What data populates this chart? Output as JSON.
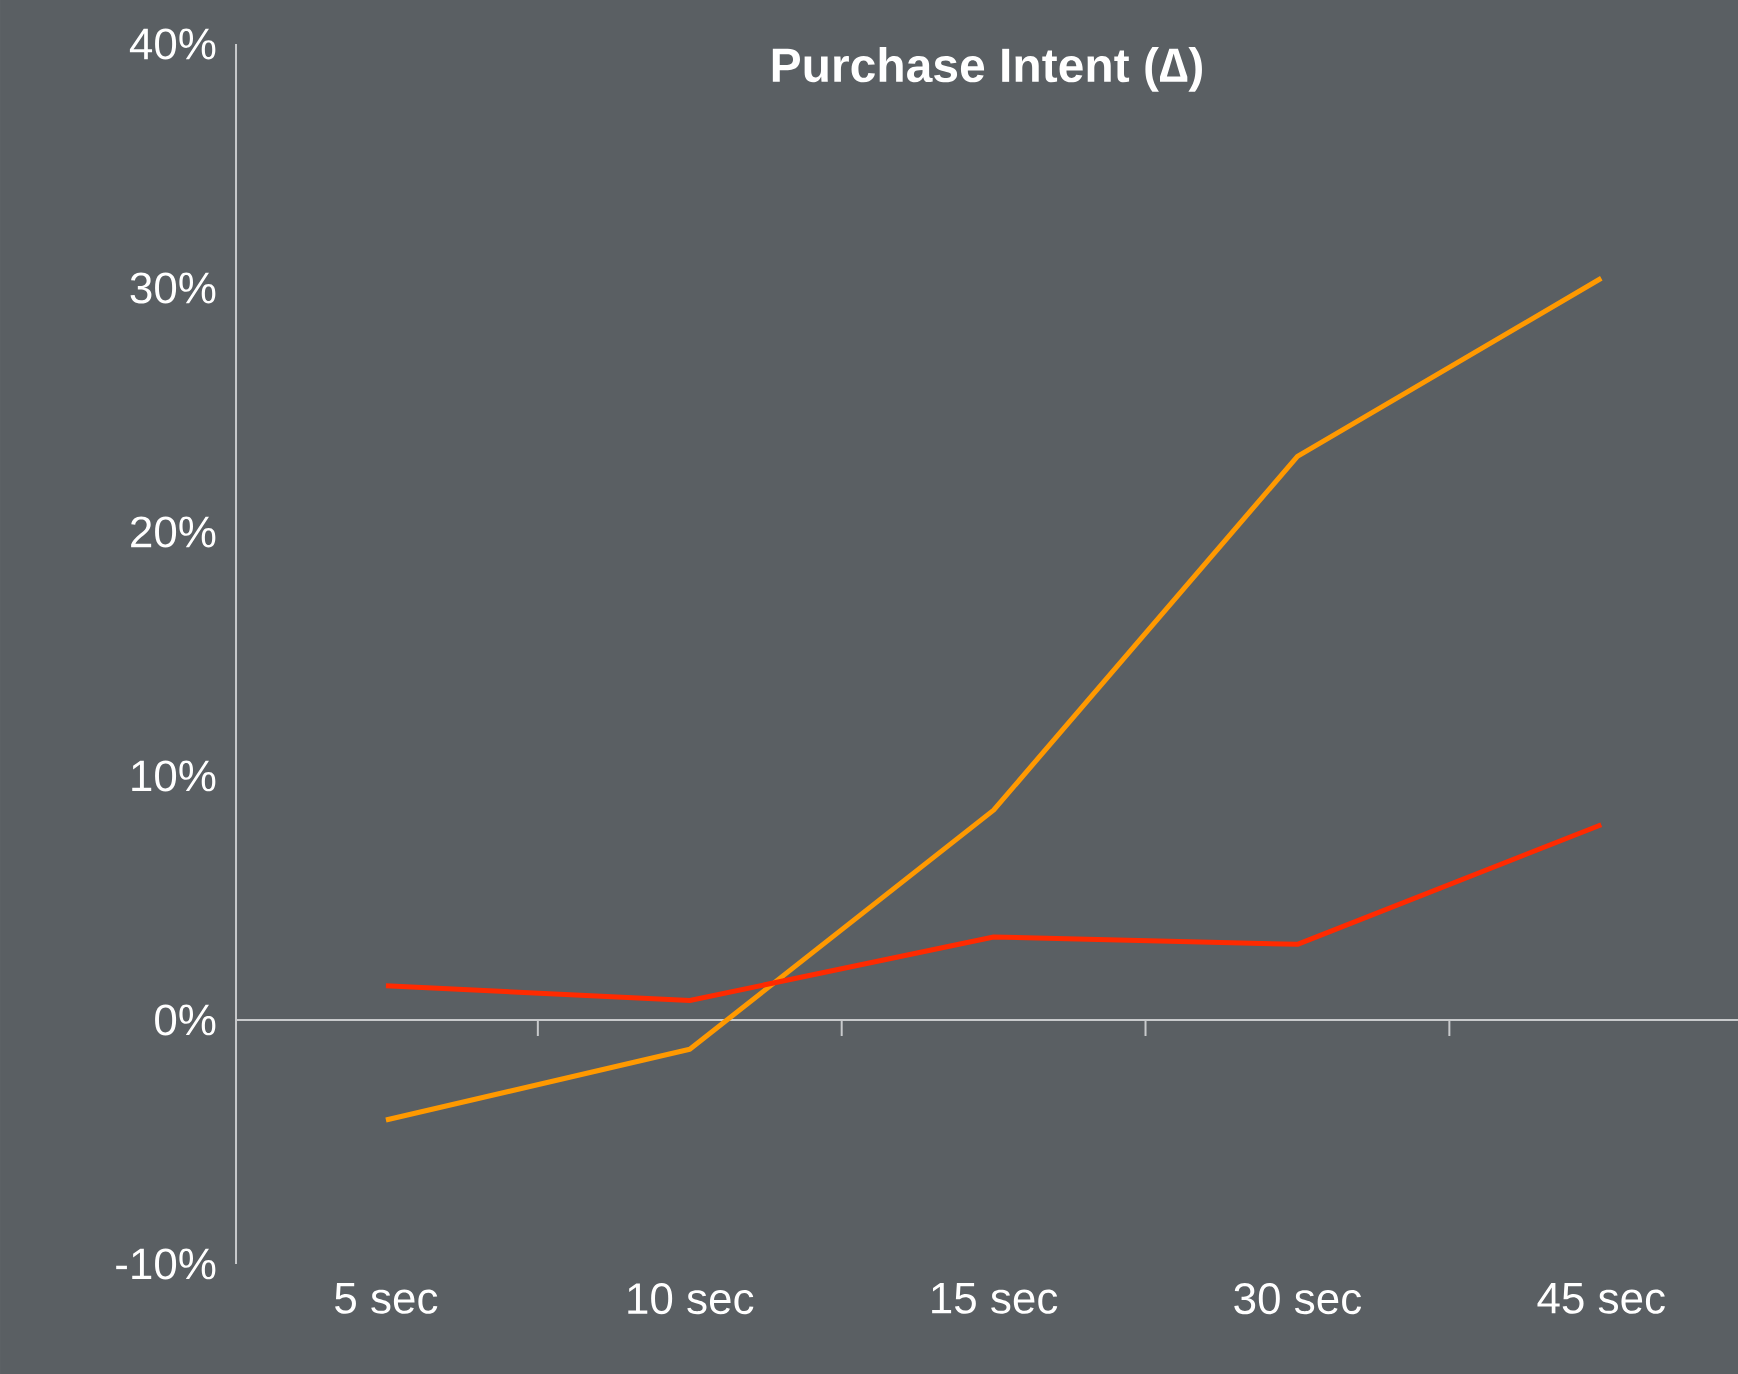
{
  "chart_data": {
    "type": "line",
    "title": "Purchase Intent (∆)",
    "categories": [
      "5 sec",
      "10 sec",
      "15 sec",
      "30 sec",
      "45 sec"
    ],
    "series": [
      {
        "color": "#ff9900",
        "values": [
          -4.1,
          -1.2,
          8.6,
          23.1,
          30.4
        ]
      },
      {
        "color": "#ff2a00",
        "values": [
          1.4,
          0.8,
          3.4,
          3.1,
          8.0
        ]
      }
    ],
    "ylim": [
      -10,
      40
    ],
    "yticks": [
      {
        "value": -10,
        "label": "-10%"
      },
      {
        "value": 0,
        "label": "0%"
      },
      {
        "value": 10,
        "label": "10%"
      },
      {
        "value": 20,
        "label": "20%"
      },
      {
        "value": 30,
        "label": "30%"
      },
      {
        "value": 40,
        "label": "40%"
      }
    ],
    "marker": "none",
    "line_style": "solid"
  }
}
